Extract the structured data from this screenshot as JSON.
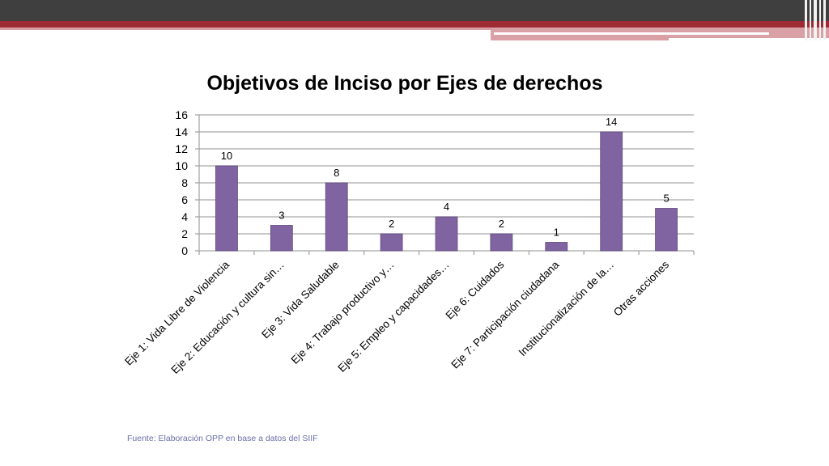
{
  "slide": {
    "source_note": "Fuente: Elaboración OPP en base a datos del SIIF"
  },
  "colors": {
    "bar": "#8064a2",
    "bar_stroke": "#5f4a7c",
    "grid": "#a6a6a6",
    "header_dark": "#3f3f3f",
    "header_red": "#9e2a34",
    "header_pink": "#d9a1a6",
    "source_text": "#6b6fa8"
  },
  "chart_data": {
    "type": "bar",
    "title": "Objetivos de Inciso por Ejes de derechos",
    "categories": [
      "Eje 1: Vida Libre de Violencia",
      "Eje 2: Educación y cultura sin…",
      "Eje 3: Vida Saludable",
      "Eje 4: Trabajo productivo y…",
      "Eje 5: Empleo y capacidades…",
      "Eje 6: Cuidados",
      "Eje 7: Participación ciudadana",
      "Institucionalización de la…",
      "Otras acciones"
    ],
    "values": [
      10,
      3,
      8,
      2,
      4,
      2,
      1,
      14,
      5
    ],
    "data_labels": true,
    "ylim": [
      0,
      16
    ],
    "yticks": [
      0,
      2,
      4,
      6,
      8,
      10,
      12,
      14,
      16
    ],
    "grid": true,
    "legend": "none",
    "xlabel": "",
    "ylabel": ""
  }
}
